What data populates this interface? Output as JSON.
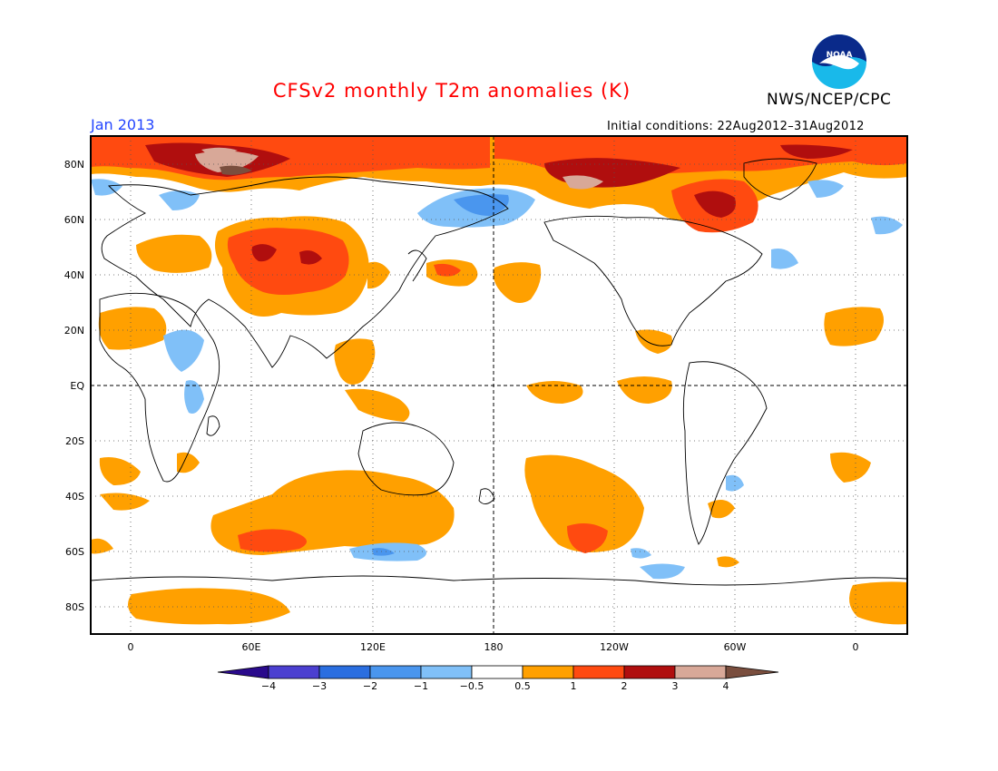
{
  "title": "CFSv2 monthly T2m anomalies (K)",
  "agency": "NWS/NCEP/CPC",
  "logo_text": "NOAA",
  "period": "Jan 2013",
  "initial_conditions": "Initial conditions: 22Aug2012–31Aug2012",
  "lat_labels": [
    "80N",
    "60N",
    "40N",
    "20N",
    "EQ",
    "20S",
    "40S",
    "60S",
    "80S"
  ],
  "lon_labels": [
    "0",
    "60E",
    "120E",
    "180",
    "120W",
    "60W",
    "0"
  ],
  "colorbar": {
    "labels": [
      "−4",
      "−3",
      "−2",
      "−1",
      "−0.5",
      "0.5",
      "1",
      "2",
      "3",
      "4"
    ],
    "colors": [
      "#2a0a8c",
      "#4b3fd0",
      "#2a6ee0",
      "#4a96ee",
      "#80c0f8",
      "#ffffff",
      "#ffa000",
      "#ff4a10",
      "#b00e0e",
      "#d8a898",
      "#7a4e3e"
    ]
  },
  "colors": {
    "title": "#ff0000",
    "period": "#2244ff",
    "warm1": "#ffa000",
    "warm2": "#ff4a10",
    "warm3": "#b00e0e",
    "warm4": "#d8a898",
    "cool1": "#80c0f8",
    "cool2": "#4a96ee",
    "cool3": "#2a6ee0"
  }
}
